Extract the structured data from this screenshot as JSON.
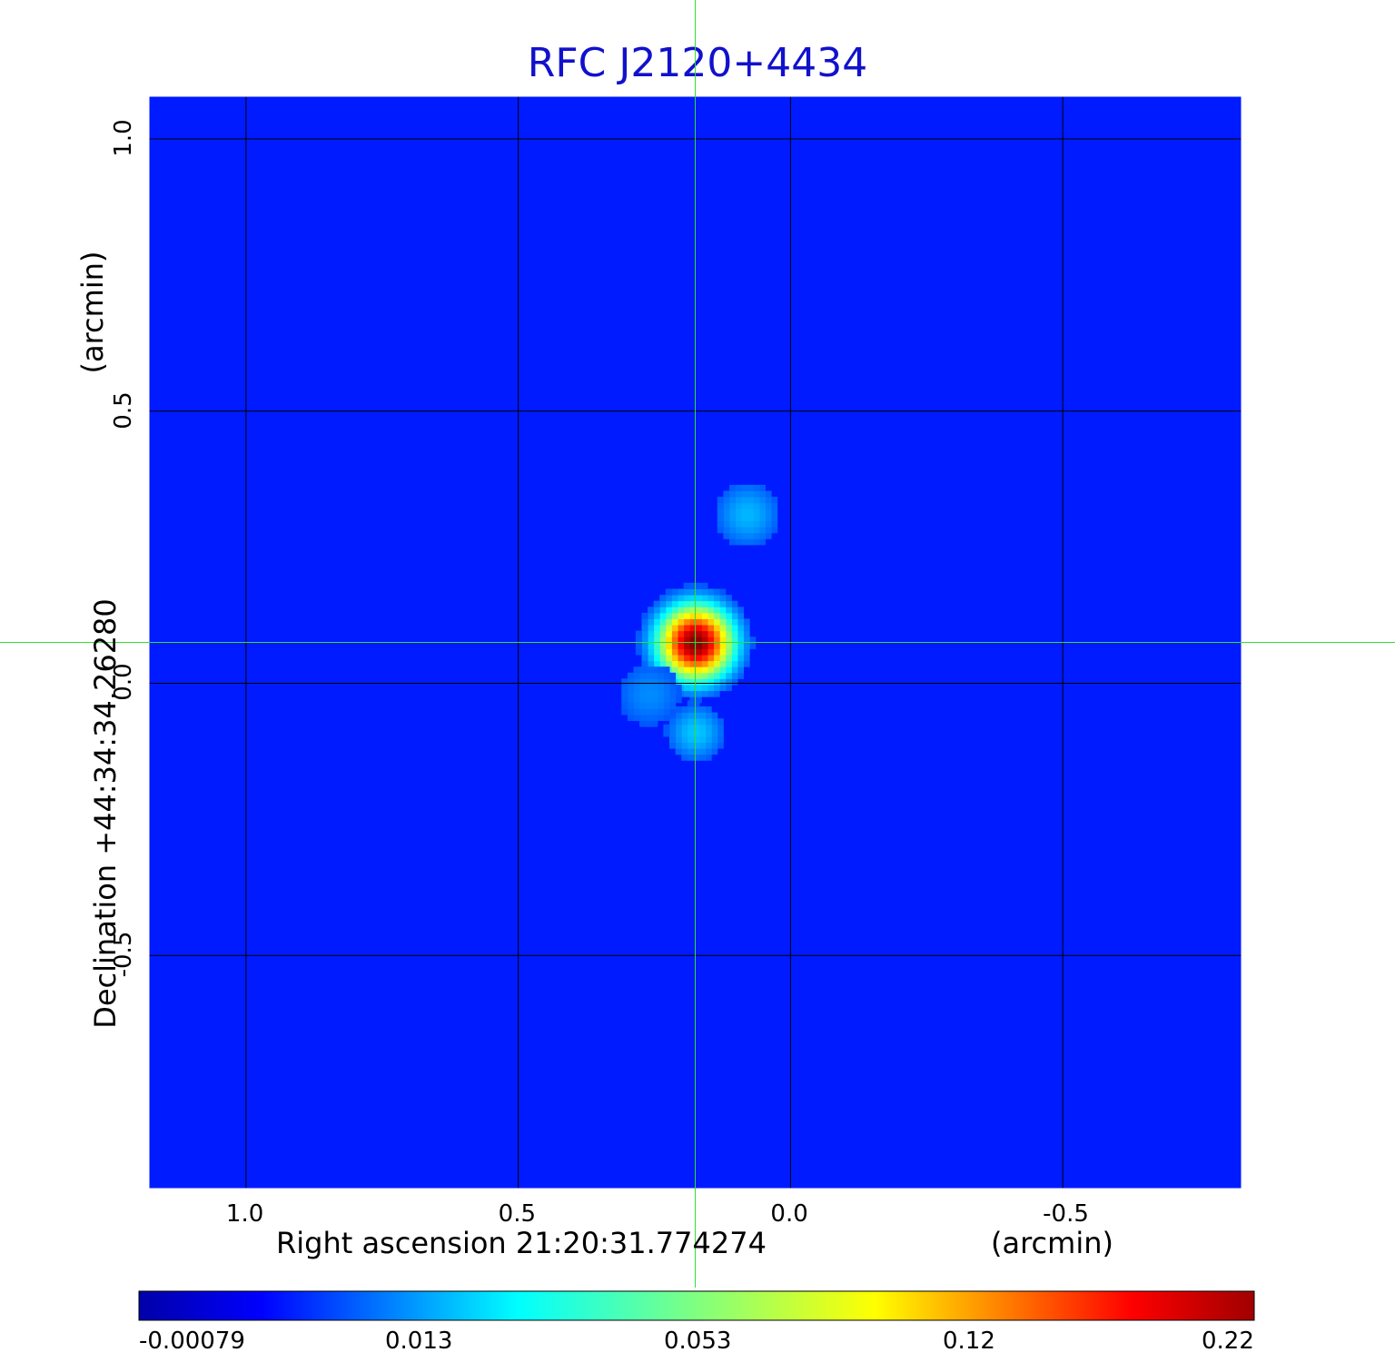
{
  "chart_data": {
    "type": "heatmap",
    "title": "RFC J2120+4434",
    "x_axis": {
      "label": "Right ascension  21:20:31.774274",
      "unit_label": "(arcmin)",
      "ticks": [
        1.0,
        0.5,
        0.0,
        -0.5
      ],
      "tick_labels": [
        "1.0",
        "0.5",
        "0.0",
        "-0.5"
      ],
      "range": [
        1.18,
        -0.83
      ],
      "reversed": true
    },
    "y_axis": {
      "label": "Declination  +44:34:34.26280",
      "unit_label": "(arcmin)",
      "ticks": [
        1.0,
        0.5,
        0.0,
        -0.5
      ],
      "tick_labels": [
        "1.0",
        "0.5",
        "0.0",
        "-0.5"
      ],
      "range": [
        -0.93,
        1.08
      ]
    },
    "grid": true,
    "crosshair": {
      "x": 0.175,
      "y": 0.075,
      "color": "#33dd33"
    },
    "colorbar": {
      "ticks": [
        "-0.00079",
        "0.013",
        "0.053",
        "0.12",
        "0.22"
      ],
      "min": -0.00079,
      "max": 0.22,
      "colormap": "jet"
    },
    "sources": [
      {
        "x": 0.175,
        "y": 0.075,
        "peak": 0.22,
        "sigma": 0.035
      },
      {
        "x": 0.175,
        "y": -0.09,
        "peak": 0.012,
        "sigma": 0.03
      },
      {
        "x": 0.26,
        "y": -0.02,
        "peak": 0.006,
        "sigma": 0.04
      },
      {
        "x": 0.08,
        "y": 0.31,
        "peak": 0.01,
        "sigma": 0.035
      }
    ],
    "background_level": -0.0003
  },
  "colors": {
    "title": "#1111cc",
    "grid": "#000000",
    "crosshair": "#33dd33"
  }
}
